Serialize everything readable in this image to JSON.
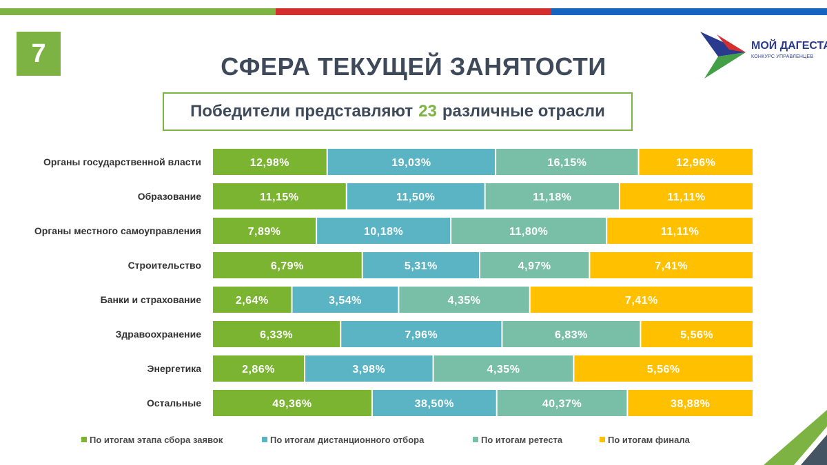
{
  "slide_number": "7",
  "title": "СФЕРА ТЕКУЩЕЙ ЗАНЯТОСТИ",
  "subtitle": {
    "before": "Победители представляют",
    "number": "23",
    "after": "различные отрасли"
  },
  "logo": {
    "line1": "МОЙ ДАГЕСТАН",
    "line2": "КОНКУРС УПРАВЛЕНЦЕВ"
  },
  "colors": {
    "green": "#7cb342",
    "red": "#d32f2f",
    "blue": "#1565c0",
    "navy": "#2a3a8c",
    "slate": "#455463",
    "series": [
      "#7ab431",
      "#5ab4c3",
      "#79bfa8",
      "#ffc000"
    ]
  },
  "chart_data": {
    "type": "bar",
    "orientation": "horizontal",
    "stacked": true,
    "categories": [
      "Органы государственной власти",
      "Образование",
      "Органы местного самоуправления",
      "Строительство",
      "Банки и страхование",
      "Здравоохранение",
      "Энергетика",
      "Остальные"
    ],
    "series": [
      {
        "name": "По итогам этапа сбора заявок",
        "values": [
          12.98,
          11.15,
          7.89,
          6.79,
          2.64,
          6.33,
          2.86,
          49.36
        ],
        "labels": [
          "12,98%",
          "11,15%",
          "7,89%",
          "6,79%",
          "2,64%",
          "6,33%",
          "2,86%",
          "49,36%"
        ]
      },
      {
        "name": "По итогам дистанционного отбора",
        "values": [
          19.03,
          11.5,
          10.18,
          5.31,
          3.54,
          7.96,
          3.98,
          38.5
        ],
        "labels": [
          "19,03%",
          "11,50%",
          "10,18%",
          "5,31%",
          "3,54%",
          "7,96%",
          "3,98%",
          "38,50%"
        ]
      },
      {
        "name": "По итогам ретеста",
        "values": [
          16.15,
          11.18,
          11.8,
          4.97,
          4.35,
          6.83,
          4.35,
          40.37
        ],
        "labels": [
          "16,15%",
          "11,18%",
          "11,80%",
          "4,97%",
          "4,35%",
          "6,83%",
          "4,35%",
          "40,37%"
        ]
      },
      {
        "name": "По итогам финала",
        "values": [
          12.96,
          11.11,
          11.11,
          7.41,
          7.41,
          5.56,
          5.56,
          38.88
        ],
        "labels": [
          "12,96%",
          "11,11%",
          "11,11%",
          "7,41%",
          "7,41%",
          "5,56%",
          "5,56%",
          "38,88%"
        ]
      }
    ],
    "legend_position": "bottom",
    "grid": false
  }
}
